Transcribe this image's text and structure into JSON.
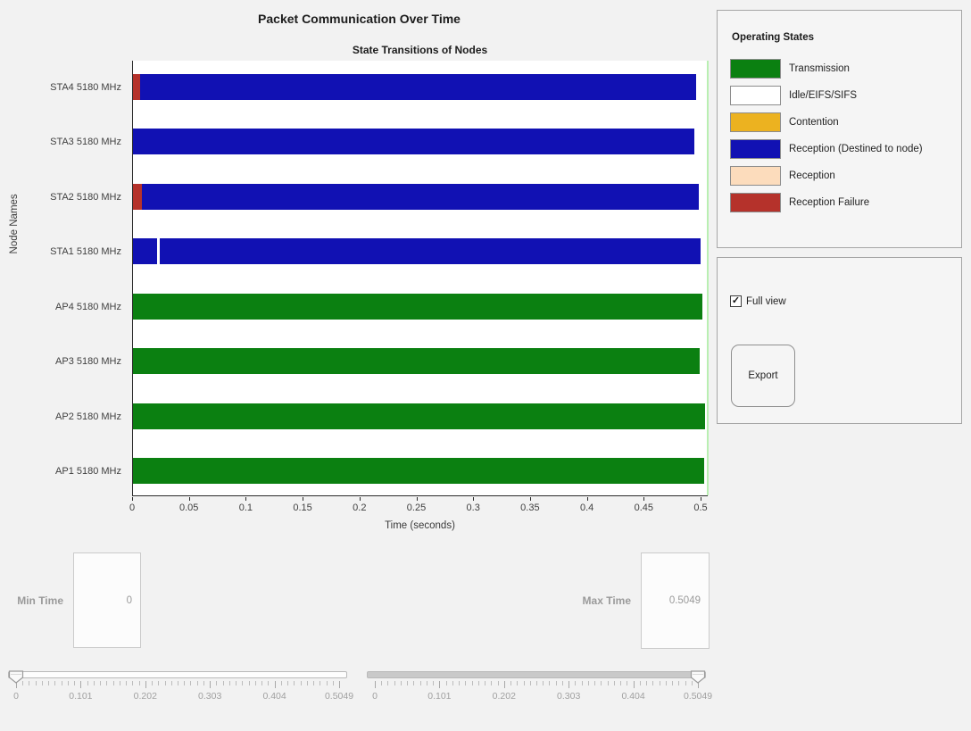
{
  "header": {
    "title": "Packet Communication Over Time"
  },
  "chart_data": {
    "type": "state-timeline",
    "title": "State Transitions of Nodes",
    "xlabel": "Time (seconds)",
    "ylabel": "Node Names",
    "xlim": [
      0,
      0.5063
    ],
    "grid": false,
    "max_time_marker": 0.5049,
    "x_ticks": [
      {
        "value": 0,
        "label": "0"
      },
      {
        "value": 0.05,
        "label": "0.05"
      },
      {
        "value": 0.1,
        "label": "0.1"
      },
      {
        "value": 0.15,
        "label": "0.15"
      },
      {
        "value": 0.2,
        "label": "0.2"
      },
      {
        "value": 0.25,
        "label": "0.25"
      },
      {
        "value": 0.3,
        "label": "0.3"
      },
      {
        "value": 0.35,
        "label": "0.35"
      },
      {
        "value": 0.4,
        "label": "0.4"
      },
      {
        "value": 0.45,
        "label": "0.45"
      },
      {
        "value": 0.5,
        "label": "0.5"
      }
    ],
    "nodes": [
      {
        "label": "STA4 5180 MHz",
        "segments": [
          {
            "state": "reception_failure",
            "start": 0,
            "end": 0.0065
          },
          {
            "state": "reception_destined",
            "start": 0.0065,
            "end": 0.4955
          }
        ]
      },
      {
        "label": "STA3 5180 MHz",
        "segments": [
          {
            "state": "reception_destined",
            "start": 0,
            "end": 0.494
          }
        ]
      },
      {
        "label": "STA2 5180 MHz",
        "segments": [
          {
            "state": "reception_failure",
            "start": 0,
            "end": 0.0075
          },
          {
            "state": "reception_destined",
            "start": 0.0075,
            "end": 0.4975
          }
        ]
      },
      {
        "label": "STA1 5180 MHz",
        "segments": [
          {
            "state": "reception_destined",
            "start": 0,
            "end": 0.021
          },
          {
            "state": "idle",
            "start": 0.021,
            "end": 0.0235
          },
          {
            "state": "reception_destined",
            "start": 0.0235,
            "end": 0.4995
          }
        ]
      },
      {
        "label": "AP4 5180 MHz",
        "segments": [
          {
            "state": "transmission",
            "start": 0,
            "end": 0.5005
          }
        ]
      },
      {
        "label": "AP3 5180 MHz",
        "segments": [
          {
            "state": "transmission",
            "start": 0,
            "end": 0.4985
          }
        ]
      },
      {
        "label": "AP2 5180 MHz",
        "segments": [
          {
            "state": "transmission",
            "start": 0,
            "end": 0.5035
          }
        ]
      },
      {
        "label": "AP1 5180 MHz",
        "segments": [
          {
            "state": "transmission",
            "start": 0,
            "end": 0.5025
          }
        ]
      }
    ]
  },
  "legend": {
    "title": "Operating States",
    "items": [
      {
        "state": "transmission",
        "label": "Transmission",
        "color": "#0b8011"
      },
      {
        "state": "idle",
        "label": "Idle/EIFS/SIFS",
        "color": "#ffffff"
      },
      {
        "state": "contention",
        "label": "Contention",
        "color": "#ecb220"
      },
      {
        "state": "reception_destined",
        "label": "Reception (Destined to node)",
        "color": "#1111b3"
      },
      {
        "state": "reception",
        "label": "Reception",
        "color": "#fcdcbc"
      },
      {
        "state": "reception_failure",
        "label": "Reception Failure",
        "color": "#b5322b"
      }
    ]
  },
  "side_panel": {
    "full_view_label": "Full view",
    "full_view_checked": true,
    "check_glyph": "✓",
    "export_label": "Export"
  },
  "time_controls": {
    "min": {
      "label": "Min Time",
      "value": "0"
    },
    "max": {
      "label": "Max Time",
      "value": "0.5049"
    },
    "slider_range": [
      0,
      0.5049
    ],
    "slider_tick_labels": [
      "0",
      "0.101",
      "0.202",
      "0.303",
      "0.404",
      "0.5049"
    ],
    "min_slider_value": 0,
    "max_slider_value": 0.5049
  }
}
